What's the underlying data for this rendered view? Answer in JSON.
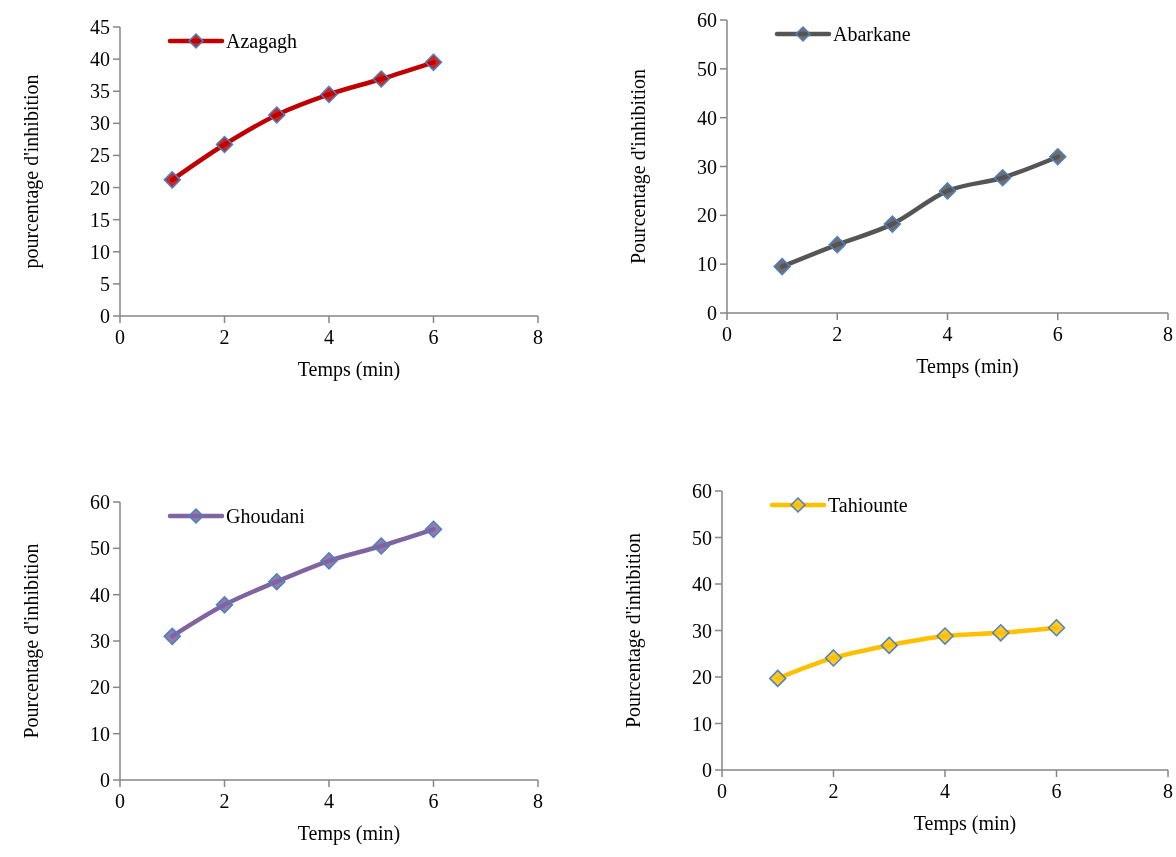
{
  "chart_data": [
    {
      "type": "line",
      "xlabel": "Temps (min)",
      "ylabel": "pourcentage d'inhibition",
      "x": [
        1,
        2,
        3,
        4,
        5,
        6
      ],
      "xlim": [
        0,
        8
      ],
      "xticks": [
        0,
        2,
        4,
        6,
        8
      ],
      "ylim": [
        0,
        45
      ],
      "yticks": [
        0,
        5,
        10,
        15,
        20,
        25,
        30,
        35,
        40,
        45
      ],
      "legend": "top left",
      "marker": "diamond",
      "grid": false,
      "series": [
        {
          "name": "Azagagh",
          "color": "#c00000",
          "values": [
            21.2,
            26.7,
            31.3,
            34.5,
            36.9,
            39.5
          ]
        }
      ]
    },
    {
      "type": "line",
      "xlabel": "Temps (min)",
      "ylabel": "Pourcentage d'inhibition",
      "x": [
        1,
        2,
        3,
        4,
        5,
        6
      ],
      "xlim": [
        0,
        8
      ],
      "xticks": [
        0,
        2,
        4,
        6,
        8
      ],
      "ylim": [
        0,
        60
      ],
      "yticks": [
        0,
        10,
        20,
        30,
        40,
        50,
        60
      ],
      "legend": "top left",
      "marker": "diamond",
      "grid": false,
      "series": [
        {
          "name": "Abarkane",
          "color": "#555555",
          "values": [
            9.5,
            14,
            18.2,
            25,
            27.7,
            32
          ]
        }
      ]
    },
    {
      "type": "line",
      "xlabel": "Temps (min)",
      "ylabel": "Pourcentage d'inhibition",
      "x": [
        1,
        2,
        3,
        4,
        5,
        6
      ],
      "xlim": [
        0,
        8
      ],
      "xticks": [
        0,
        2,
        4,
        6,
        8
      ],
      "ylim": [
        0,
        60
      ],
      "yticks": [
        0,
        10,
        20,
        30,
        40,
        50,
        60
      ],
      "legend": "top left",
      "marker": "diamond",
      "grid": false,
      "series": [
        {
          "name": "Ghoudani",
          "color": "#8064a2",
          "values": [
            31,
            37.8,
            42.8,
            47.3,
            50.5,
            54.1
          ]
        }
      ]
    },
    {
      "type": "line",
      "xlabel": "Temps (min)",
      "ylabel": "Pourcentage d'inhibition",
      "x": [
        1,
        2,
        3,
        4,
        5,
        6
      ],
      "xlim": [
        0,
        8
      ],
      "xticks": [
        0,
        2,
        4,
        6,
        8
      ],
      "ylim": [
        0,
        60
      ],
      "yticks": [
        0,
        10,
        20,
        30,
        40,
        50,
        60
      ],
      "legend": "top left",
      "marker": "diamond",
      "grid": false,
      "series": [
        {
          "name": "Tahiounte",
          "color": "#ffc000",
          "values": [
            19.7,
            24.1,
            26.8,
            28.8,
            29.5,
            30.6
          ]
        }
      ]
    }
  ]
}
